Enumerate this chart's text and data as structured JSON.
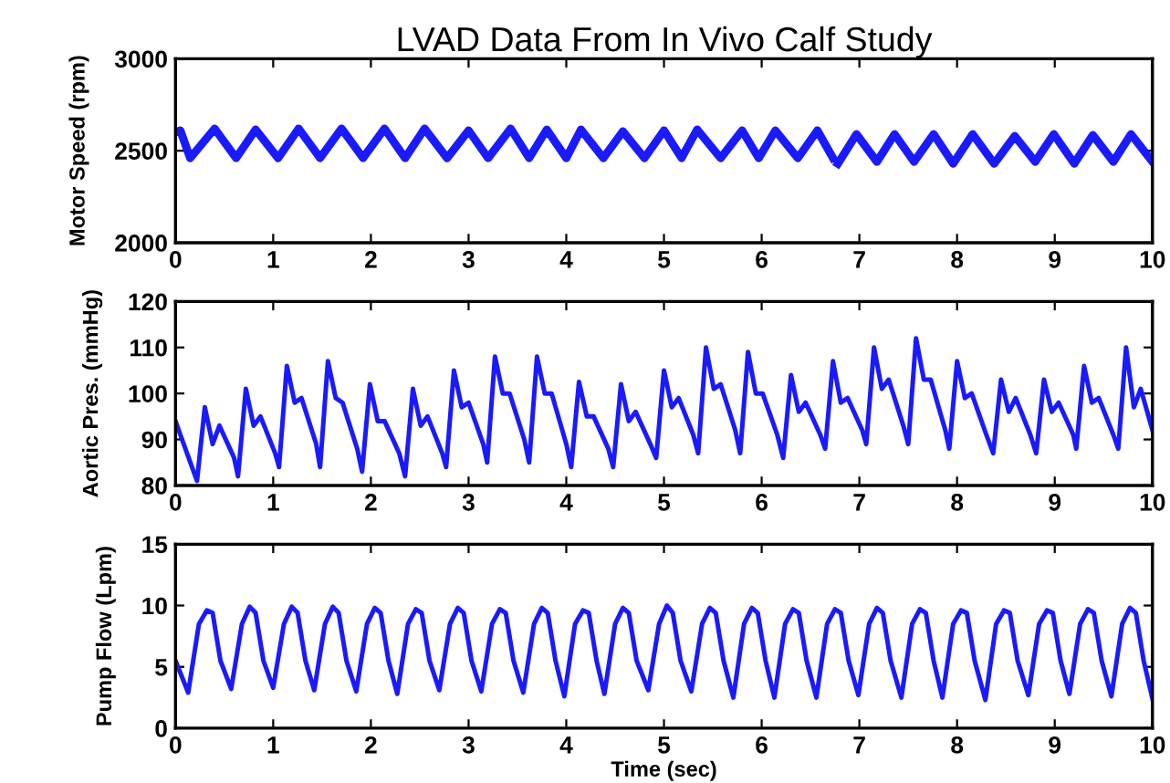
{
  "chart_data": [
    {
      "type": "line",
      "title": "LVAD Data From In Vivo Calf Study",
      "ylabel": "Motor Speed (rpm)",
      "xlim": [
        0,
        10
      ],
      "xticks": [
        0,
        1,
        2,
        3,
        4,
        5,
        6,
        7,
        8,
        9,
        10
      ],
      "ylim": [
        2000,
        3000
      ],
      "yticks": [
        2000,
        2500,
        3000
      ],
      "grid": false,
      "legend": false,
      "marker": "none",
      "line_style": "solid",
      "series": [
        {
          "color": "#1a1aff",
          "x": [
            0,
            0.05,
            0.15,
            0.4,
            0.62,
            0.82,
            1.05,
            1.26,
            1.48,
            1.7,
            1.92,
            2.14,
            2.35,
            2.55,
            2.78,
            3.0,
            3.2,
            3.43,
            3.62,
            3.8,
            4.0,
            4.15,
            4.38,
            4.58,
            4.8,
            5.0,
            5.18,
            5.34,
            5.58,
            5.8,
            5.97,
            6.14,
            6.37,
            6.57,
            6.73,
            6.75,
            6.78,
            6.97,
            7.18,
            7.36,
            7.56,
            7.76,
            7.96,
            8.16,
            8.38,
            8.59,
            8.8,
            8.99,
            9.2,
            9.39,
            9.6,
            9.78,
            10
          ],
          "values": [
            2600,
            2610,
            2460,
            2620,
            2460,
            2615,
            2460,
            2620,
            2460,
            2620,
            2460,
            2620,
            2460,
            2620,
            2460,
            2610,
            2460,
            2620,
            2460,
            2615,
            2460,
            2615,
            2460,
            2605,
            2460,
            2610,
            2460,
            2615,
            2460,
            2610,
            2460,
            2610,
            2460,
            2610,
            2460,
            null,
            2430,
            2590,
            2440,
            2590,
            2440,
            2590,
            2430,
            2590,
            2430,
            2580,
            2440,
            2590,
            2430,
            2585,
            2440,
            2590,
            2440
          ]
        }
      ]
    },
    {
      "type": "line",
      "ylabel": "Aortic Pres. (mmHg)",
      "xlim": [
        0,
        10
      ],
      "xticks": [
        0,
        1,
        2,
        3,
        4,
        5,
        6,
        7,
        8,
        9,
        10
      ],
      "ylim": [
        80,
        120
      ],
      "yticks": [
        80,
        90,
        100,
        110,
        120
      ],
      "grid": false,
      "legend": false,
      "marker": "none",
      "line_style": "solid",
      "series": [
        {
          "color": "#1a1aff",
          "x": [
            0,
            0.05,
            0.22,
            0.3,
            0.38,
            0.45,
            0.6,
            0.64,
            0.72,
            0.8,
            0.87,
            1.02,
            1.06,
            1.14,
            1.22,
            1.29,
            1.44,
            1.48,
            1.56,
            1.64,
            1.71,
            1.86,
            1.91,
            1.99,
            2.07,
            2.14,
            2.29,
            2.35,
            2.43,
            2.51,
            2.58,
            2.73,
            2.77,
            2.85,
            2.93,
            3.0,
            3.15,
            3.19,
            3.27,
            3.35,
            3.42,
            3.57,
            3.62,
            3.7,
            3.78,
            3.85,
            4.0,
            4.05,
            4.13,
            4.21,
            4.28,
            4.43,
            4.48,
            4.56,
            4.64,
            4.71,
            4.86,
            4.92,
            5.0,
            5.08,
            5.15,
            5.3,
            5.35,
            5.43,
            5.51,
            5.58,
            5.73,
            5.78,
            5.86,
            5.94,
            6.01,
            6.16,
            6.22,
            6.3,
            6.38,
            6.45,
            6.6,
            6.65,
            6.73,
            6.81,
            6.88,
            7.03,
            7.07,
            7.15,
            7.23,
            7.3,
            7.45,
            7.5,
            7.58,
            7.66,
            7.73,
            7.88,
            7.92,
            8.0,
            8.08,
            8.15,
            8.3,
            8.37,
            8.45,
            8.53,
            8.6,
            8.75,
            8.81,
            8.89,
            8.97,
            9.04,
            9.19,
            9.22,
            9.3,
            9.38,
            9.45,
            9.6,
            9.65,
            9.73,
            9.81,
            9.88,
            10
          ],
          "values": [
            94,
            91,
            81,
            97,
            89,
            93,
            86,
            82,
            101,
            93,
            95,
            87,
            84,
            106,
            98,
            99,
            89,
            84,
            107,
            99,
            98,
            88,
            83,
            102,
            94,
            94,
            87,
            82,
            101,
            93,
            95,
            87,
            84,
            105,
            97,
            98,
            89,
            85,
            108,
            100,
            100,
            90,
            85,
            108,
            100,
            100,
            89,
            84,
            102.5,
            95,
            95,
            88,
            84,
            102,
            94,
            96,
            89,
            86,
            105,
            97,
            99,
            91,
            87,
            110,
            101,
            102,
            92,
            87,
            109,
            100,
            100,
            91,
            86,
            104,
            96,
            98,
            91,
            88,
            107,
            98,
            99,
            92,
            89,
            110,
            101,
            103,
            93,
            89,
            112,
            103,
            103,
            92,
            88,
            107,
            99,
            100,
            91,
            87,
            103,
            96,
            99,
            91,
            87,
            103,
            96,
            98,
            91,
            88,
            106,
            98,
            99,
            91,
            88,
            110,
            97,
            101,
            92
          ]
        }
      ]
    },
    {
      "type": "line",
      "ylabel": "Pump Flow (Lpm)",
      "xlabel": "Time (sec)",
      "xlim": [
        0,
        10
      ],
      "xticks": [
        0,
        1,
        2,
        3,
        4,
        5,
        6,
        7,
        8,
        9,
        10
      ],
      "ylim": [
        0,
        15
      ],
      "yticks": [
        0,
        5,
        10,
        15
      ],
      "grid": false,
      "legend": false,
      "marker": "none",
      "line_style": "solid",
      "series": [
        {
          "color": "#1a1aff",
          "x": [
            0,
            0.13,
            0.24,
            0.32,
            0.38,
            0.46,
            0.57,
            0.68,
            0.76,
            0.82,
            0.9,
            1.0,
            1.11,
            1.19,
            1.25,
            1.33,
            1.42,
            1.53,
            1.61,
            1.67,
            1.75,
            1.85,
            1.96,
            2.04,
            2.1,
            2.18,
            2.27,
            2.38,
            2.46,
            2.52,
            2.6,
            2.7,
            2.81,
            2.89,
            2.95,
            3.03,
            3.13,
            3.24,
            3.32,
            3.38,
            3.46,
            3.56,
            3.67,
            3.75,
            3.81,
            3.89,
            3.98,
            4.09,
            4.17,
            4.23,
            4.31,
            4.39,
            4.5,
            4.58,
            4.64,
            4.72,
            4.84,
            4.95,
            5.03,
            5.09,
            5.17,
            5.28,
            5.39,
            5.47,
            5.53,
            5.61,
            5.71,
            5.82,
            5.9,
            5.96,
            6.04,
            6.13,
            6.24,
            6.32,
            6.38,
            6.46,
            6.56,
            6.67,
            6.75,
            6.81,
            6.89,
            6.99,
            7.1,
            7.18,
            7.24,
            7.32,
            7.43,
            7.54,
            7.62,
            7.68,
            7.76,
            7.85,
            7.96,
            8.04,
            8.1,
            8.18,
            8.29,
            8.4,
            8.48,
            8.54,
            8.62,
            8.73,
            8.84,
            8.92,
            8.98,
            9.06,
            9.15,
            9.26,
            9.34,
            9.4,
            9.48,
            9.58,
            9.69,
            9.77,
            9.83,
            9.91,
            10
          ],
          "values": [
            5.5,
            2.9,
            8.5,
            9.6,
            9.4,
            5.5,
            3.2,
            8.5,
            9.9,
            9.4,
            5.5,
            3.3,
            8.5,
            9.9,
            9.4,
            5.5,
            3.1,
            8.5,
            9.9,
            9.4,
            5.5,
            3.0,
            8.5,
            9.8,
            9.4,
            5.5,
            2.8,
            8.5,
            9.7,
            9.4,
            5.5,
            3.1,
            8.5,
            9.8,
            9.4,
            5.5,
            3.0,
            8.5,
            9.7,
            9.4,
            5.5,
            2.9,
            8.5,
            9.8,
            9.4,
            5.5,
            2.6,
            8.5,
            9.6,
            9.4,
            5.5,
            2.8,
            8.5,
            9.8,
            9.4,
            5.5,
            3.1,
            8.5,
            10.0,
            9.4,
            5.5,
            3.0,
            8.5,
            9.8,
            9.4,
            5.5,
            2.5,
            8.5,
            9.8,
            9.4,
            5.5,
            2.5,
            8.5,
            9.7,
            9.4,
            5.5,
            2.5,
            8.5,
            9.7,
            9.4,
            5.5,
            2.7,
            8.5,
            9.8,
            9.4,
            5.5,
            2.5,
            8.5,
            9.7,
            9.4,
            5.5,
            2.5,
            8.5,
            9.6,
            9.4,
            5.5,
            2.3,
            8.5,
            9.6,
            9.4,
            5.5,
            2.7,
            8.5,
            9.6,
            9.4,
            5.5,
            2.8,
            8.5,
            9.7,
            9.4,
            5.5,
            2.6,
            8.5,
            9.8,
            9.4,
            5.5,
            2.4
          ]
        }
      ]
    }
  ]
}
